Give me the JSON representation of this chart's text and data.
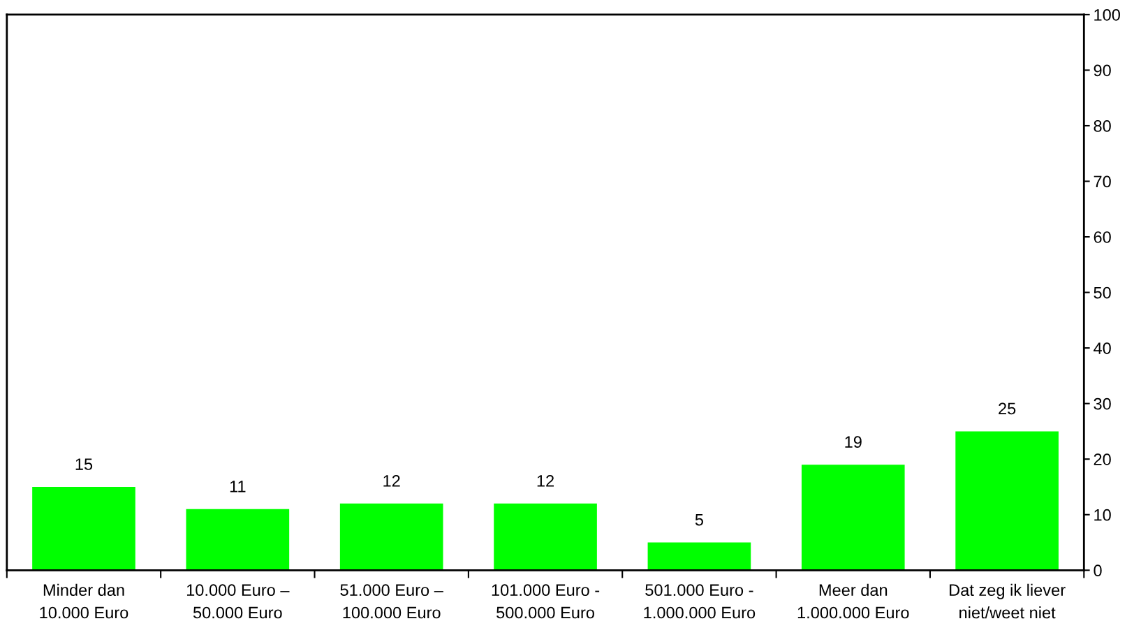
{
  "chart_data": {
    "type": "bar",
    "categories": [
      "Minder dan\n10.000 Euro",
      "10.000 Euro –\n50.000 Euro",
      "51.000 Euro –\n100.000 Euro",
      "101.000 Euro -\n500.000 Euro",
      "501.000 Euro -\n1.000.000 Euro",
      "Meer dan\n1.000.000 Euro",
      "Dat zeg ik liever\nniet/weet niet"
    ],
    "values": [
      15,
      11,
      12,
      12,
      5,
      19,
      25
    ],
    "color": "#00ff00",
    "ylim": [
      0,
      100
    ],
    "yticks": [
      0,
      10,
      20,
      30,
      40,
      50,
      60,
      70,
      80,
      90,
      100
    ],
    "data_labels": true,
    "grid": false
  }
}
